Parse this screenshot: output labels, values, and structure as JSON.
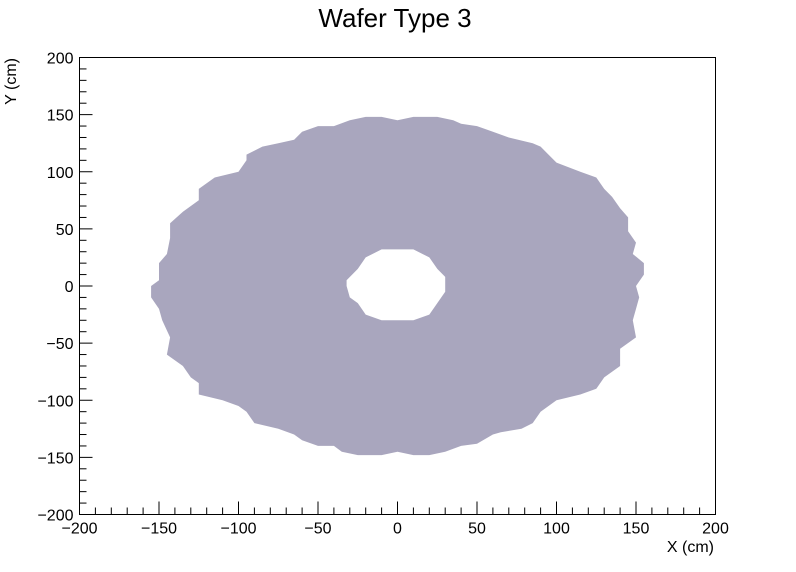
{
  "chart_data": {
    "type": "scatter",
    "title": "Wafer Type 3",
    "xlabel": "X (cm)",
    "ylabel": "Y (cm)",
    "xlim": [
      -200,
      200
    ],
    "ylim": [
      -200,
      200
    ],
    "x_ticks": [
      -200,
      -150,
      -100,
      -50,
      0,
      50,
      100,
      150,
      200
    ],
    "y_ticks": [
      -200,
      -150,
      -100,
      -50,
      0,
      50,
      100,
      150,
      200
    ],
    "x_tick_labels": [
      "−200",
      "−150",
      "−100",
      "−50",
      "0",
      "50",
      "100",
      "150",
      "200"
    ],
    "y_tick_labels": [
      "−200",
      "−150",
      "−100",
      "−50",
      "0",
      "50",
      "100",
      "150",
      "200"
    ],
    "grid": false,
    "fill_color": "#a9a6be",
    "region": {
      "outer_boundary": [
        [
          -150,
          12
        ],
        [
          -150,
          20
        ],
        [
          -145,
          28
        ],
        [
          -143,
          42
        ],
        [
          -143,
          55
        ],
        [
          -135,
          65
        ],
        [
          -125,
          75
        ],
        [
          -125,
          85
        ],
        [
          -115,
          95
        ],
        [
          -100,
          100
        ],
        [
          -95,
          110
        ],
        [
          -95,
          115
        ],
        [
          -85,
          122
        ],
        [
          -75,
          125
        ],
        [
          -65,
          128
        ],
        [
          -60,
          135
        ],
        [
          -50,
          140
        ],
        [
          -40,
          140
        ],
        [
          -30,
          145
        ],
        [
          -20,
          148
        ],
        [
          -10,
          148
        ],
        [
          0,
          145
        ],
        [
          10,
          148
        ],
        [
          25,
          148
        ],
        [
          35,
          145
        ],
        [
          40,
          142
        ],
        [
          50,
          140
        ],
        [
          60,
          135
        ],
        [
          70,
          130
        ],
        [
          85,
          125
        ],
        [
          90,
          122
        ],
        [
          95,
          115
        ],
        [
          100,
          108
        ],
        [
          115,
          100
        ],
        [
          125,
          95
        ],
        [
          130,
          85
        ],
        [
          135,
          78
        ],
        [
          140,
          68
        ],
        [
          145,
          60
        ],
        [
          145,
          48
        ],
        [
          150,
          38
        ],
        [
          148,
          28
        ],
        [
          155,
          20
        ],
        [
          155,
          10
        ],
        [
          150,
          0
        ],
        [
          152,
          -10
        ],
        [
          150,
          -20
        ],
        [
          148,
          -30
        ],
        [
          150,
          -45
        ],
        [
          140,
          -55
        ],
        [
          140,
          -70
        ],
        [
          130,
          -80
        ],
        [
          125,
          -90
        ],
        [
          115,
          -95
        ],
        [
          100,
          -100
        ],
        [
          90,
          -110
        ],
        [
          85,
          -120
        ],
        [
          78,
          -125
        ],
        [
          65,
          -128
        ],
        [
          60,
          -130
        ],
        [
          50,
          -138
        ],
        [
          40,
          -140
        ],
        [
          30,
          -145
        ],
        [
          20,
          -148
        ],
        [
          10,
          -148
        ],
        [
          0,
          -145
        ],
        [
          -10,
          -148
        ],
        [
          -25,
          -148
        ],
        [
          -35,
          -145
        ],
        [
          -40,
          -140
        ],
        [
          -50,
          -140
        ],
        [
          -60,
          -135
        ],
        [
          -65,
          -130
        ],
        [
          -75,
          -125
        ],
        [
          -90,
          -120
        ],
        [
          -95,
          -110
        ],
        [
          -100,
          -105
        ],
        [
          -110,
          -100
        ],
        [
          -125,
          -95
        ],
        [
          -125,
          -85
        ],
        [
          -130,
          -80
        ],
        [
          -135,
          -70
        ],
        [
          -145,
          -60
        ],
        [
          -143,
          -45
        ],
        [
          -148,
          -30
        ],
        [
          -150,
          -20
        ],
        [
          -155,
          -10
        ],
        [
          -155,
          0
        ],
        [
          -150,
          5
        ]
      ],
      "inner_hole": [
        [
          -32,
          0
        ],
        [
          -32,
          5
        ],
        [
          -25,
          15
        ],
        [
          -20,
          25
        ],
        [
          -10,
          32
        ],
        [
          0,
          32
        ],
        [
          10,
          32
        ],
        [
          20,
          25
        ],
        [
          25,
          15
        ],
        [
          30,
          8
        ],
        [
          30,
          -5
        ],
        [
          25,
          -15
        ],
        [
          20,
          -25
        ],
        [
          10,
          -30
        ],
        [
          0,
          -30
        ],
        [
          -10,
          -30
        ],
        [
          -20,
          -25
        ],
        [
          -25,
          -15
        ],
        [
          -30,
          -10
        ]
      ]
    }
  }
}
